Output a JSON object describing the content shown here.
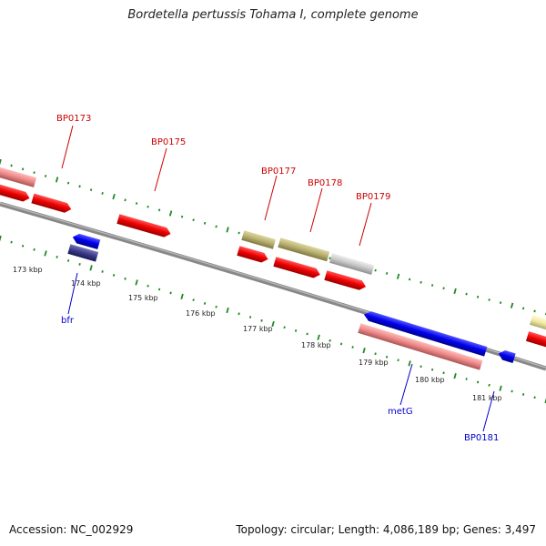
{
  "header": {
    "title": "Bordetella pertussis Tohama I, complete genome"
  },
  "footer": {
    "accession": "Accession: NC_002929",
    "topology": "Topology: circular; Length: 4,086,189 bp; Genes: 3,497"
  },
  "scale": {
    "ticks": [
      "173 kbp",
      "174 kbp",
      "175 kbp",
      "176 kbp",
      "177 kbp",
      "178 kbp",
      "179 kbp",
      "180 kbp",
      "181 kbp"
    ]
  },
  "features": {
    "forward": [
      {
        "label": "BP0173",
        "color": "#cc0000"
      },
      {
        "label": "BP0175",
        "color": "#cc0000"
      },
      {
        "label": "BP0177",
        "color": "#cc0000"
      },
      {
        "label": "BP0178",
        "color": "#cc0000"
      },
      {
        "label": "BP0179",
        "color": "#cc0000"
      }
    ],
    "reverse": [
      {
        "label": "bfr",
        "color": "#0000cc"
      },
      {
        "label": "metG",
        "color": "#0000cc"
      },
      {
        "label": "BP0181",
        "color": "#0000cc"
      }
    ]
  },
  "colors": {
    "cds_red": "#ee0000",
    "cds_pink": "#ee8888",
    "cds_blue": "#0000ee",
    "cds_navy": "#3a3a88",
    "cds_olive": "#b8b070",
    "cds_grey": "#c8c8c8",
    "cds_yellow": "#eee8a0",
    "backbone": "#888888",
    "gc_dots": "#228822"
  }
}
